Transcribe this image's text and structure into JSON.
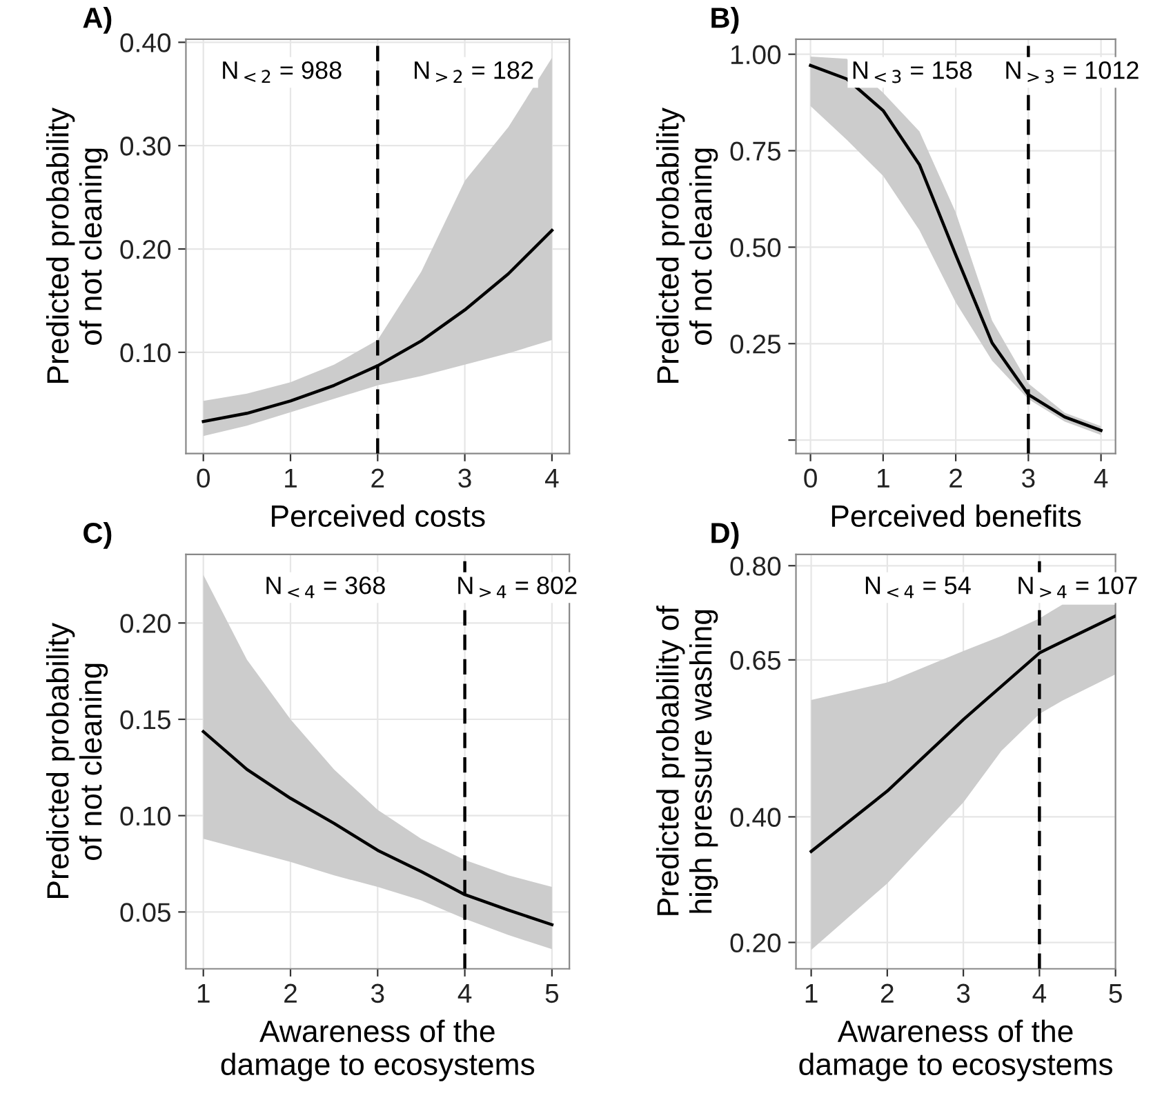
{
  "chart_data": [
    {
      "type": "line",
      "title": "A)",
      "xlabel": "Perceived costs",
      "ylabel": "Predicted probability\nof not cleaning",
      "xlim": [
        -0.2,
        4.2
      ],
      "xticks": [
        0,
        1,
        2,
        3,
        4
      ],
      "ylim": [
        0.002,
        0.403
      ],
      "yticks": [
        {
          "value": 0.1,
          "label": "0.10"
        },
        {
          "value": 0.2,
          "label": "0.20"
        },
        {
          "value": 0.3,
          "label": "0.30"
        },
        {
          "value": 0.4,
          "label": "0.40"
        }
      ],
      "grid": true,
      "series": [
        {
          "color": "#000000",
          "x": [
            0,
            0.5,
            1,
            1.5,
            2,
            2.5,
            3,
            3.5,
            4
          ],
          "values": [
            0.033,
            0.041,
            0.053,
            0.068,
            0.087,
            0.111,
            0.141,
            0.176,
            0.218
          ],
          "lower": [
            0.019,
            0.029,
            0.042,
            0.055,
            0.068,
            0.077,
            0.088,
            0.099,
            0.112
          ],
          "upper": [
            0.053,
            0.06,
            0.071,
            0.088,
            0.112,
            0.178,
            0.266,
            0.318,
            0.385
          ]
        }
      ],
      "ref_lines": [
        {
          "axis": "x",
          "value": 2,
          "line_style": "dashed",
          "color": "#000000"
        }
      ],
      "annotations": [
        "N$_{<2}$ = 988",
        "N$_{>2}$ = 182"
      ]
    },
    {
      "type": "line",
      "title": "B)",
      "xlabel": "Perceived benefits",
      "ylabel": "Predicted probability\nof not cleaning",
      "xlim": [
        -0.2,
        4.2
      ],
      "xticks": [
        0,
        1,
        2,
        3,
        4
      ],
      "ylim": [
        -0.035,
        1.039
      ],
      "yticks": [
        {
          "value": 0,
          "label": null
        },
        {
          "value": 0.25,
          "label": "0.25"
        },
        {
          "value": 0.5,
          "label": "0.50"
        },
        {
          "value": 0.75,
          "label": "0.75"
        },
        {
          "value": 1,
          "label": "1.00"
        }
      ],
      "grid": true,
      "series": [
        {
          "color": "#000000",
          "x": [
            0,
            0.5,
            1,
            1.5,
            2,
            2.5,
            3,
            3.5,
            4
          ],
          "values": [
            0.971,
            0.936,
            0.854,
            0.714,
            0.48,
            0.252,
            0.118,
            0.06,
            0.025
          ],
          "lower": [
            0.866,
            0.778,
            0.685,
            0.544,
            0.357,
            0.206,
            0.106,
            0.048,
            0.013
          ],
          "upper": [
            0.994,
            0.988,
            0.9,
            0.8,
            0.59,
            0.31,
            0.147,
            0.071,
            0.036
          ]
        }
      ],
      "ref_lines": [
        {
          "axis": "x",
          "value": 3,
          "line_style": "dashed",
          "color": "#000000"
        }
      ],
      "annotations": [
        "N$_{<3}$ = 158",
        "N$_{>3}$ = 1012"
      ]
    },
    {
      "type": "line",
      "title": "C)",
      "xlabel": "Awareness of the\ndamage to ecosystems",
      "ylabel": "Predicted probability\nof not cleaning",
      "xlim": [
        0.8,
        5.2
      ],
      "xticks": [
        1,
        2,
        3,
        4,
        5
      ],
      "ylim": [
        0.0205,
        0.2356
      ],
      "yticks": [
        {
          "value": 0.05,
          "label": "0.05"
        },
        {
          "value": 0.1,
          "label": "0.10"
        },
        {
          "value": 0.15,
          "label": "0.15"
        },
        {
          "value": 0.2,
          "label": "0.20"
        }
      ],
      "grid": true,
      "series": [
        {
          "color": "#000000",
          "x": [
            1,
            1.5,
            2,
            2.5,
            3,
            3.5,
            4,
            4.5,
            5
          ],
          "values": [
            0.1436,
            0.124,
            0.109,
            0.096,
            0.082,
            0.071,
            0.059,
            0.051,
            0.0434
          ],
          "lower": [
            0.088,
            0.082,
            0.076,
            0.069,
            0.063,
            0.056,
            0.0465,
            0.038,
            0.0307
          ],
          "upper": [
            0.225,
            0.181,
            0.15,
            0.124,
            0.103,
            0.088,
            0.077,
            0.069,
            0.063
          ]
        }
      ],
      "ref_lines": [
        {
          "axis": "x",
          "value": 4,
          "line_style": "dashed",
          "color": "#000000"
        }
      ],
      "annotations": [
        "N$_{<4}$ = 368",
        "N$_{>4}$ = 802"
      ]
    },
    {
      "type": "line",
      "title": "D)",
      "xlabel": "Awareness of the\ndamage to ecosystems",
      "ylabel": "Predicted probability of\nhigh pressure washing",
      "xlim": [
        0.8,
        5.0
      ],
      "xticks": [
        1,
        2,
        3,
        4,
        5
      ],
      "ylim": [
        0.158,
        0.818
      ],
      "yticks": [
        {
          "value": 0.2,
          "label": "0.20"
        },
        {
          "value": 0.4,
          "label": "0.40"
        },
        {
          "value": 0.65,
          "label": "0.65"
        },
        {
          "value": 0.8,
          "label": "0.80"
        }
      ],
      "grid": true,
      "series": [
        {
          "color": "#000000",
          "x": [
            1,
            2,
            3,
            3.5,
            4,
            4.3,
            5
          ],
          "values": [
            0.345,
            0.441,
            0.555,
            0.608,
            0.661,
            0.679,
            0.72
          ],
          "lower": [
            0.188,
            0.294,
            0.423,
            0.505,
            0.564,
            0.585,
            0.627
          ],
          "upper": [
            0.586,
            0.614,
            0.664,
            0.688,
            0.716,
            0.738,
            0.738
          ]
        }
      ],
      "ref_lines": [
        {
          "axis": "x",
          "value": 4,
          "line_style": "dashed",
          "color": "#000000"
        }
      ],
      "annotations": [
        "N$_{<4}$ = 54",
        "N$_{>4}$ = 107"
      ]
    }
  ]
}
